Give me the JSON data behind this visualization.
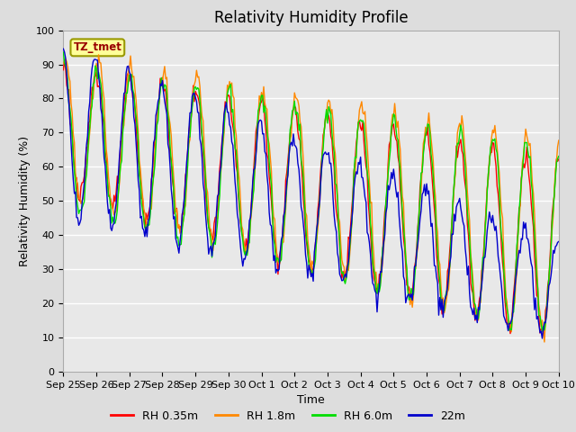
{
  "title": "Relativity Humidity Profile",
  "xlabel": "Time",
  "ylabel": "Relativity Humidity (%)",
  "ylim": [
    0,
    100
  ],
  "yticks": [
    0,
    10,
    20,
    30,
    40,
    50,
    60,
    70,
    80,
    90,
    100
  ],
  "xtick_labels": [
    "Sep 25",
    "Sep 26",
    "Sep 27",
    "Sep 28",
    "Sep 29",
    "Sep 30",
    "Oct 1",
    "Oct 2",
    "Oct 3",
    "Oct 4",
    "Oct 5",
    "Oct 6",
    "Oct 7",
    "Oct 8",
    "Oct 9",
    "Oct 10"
  ],
  "colors": {
    "RH 0.35m": "#ff0000",
    "RH 1.8m": "#ff8800",
    "RH 6.0m": "#00dd00",
    "22m": "#0000cc"
  },
  "legend_labels": [
    "RH 0.35m",
    "RH 1.8m",
    "RH 6.0m",
    "22m"
  ],
  "annotation_text": "TZ_tmet",
  "annotation_bg": "#ffff99",
  "annotation_border": "#999900",
  "fig_bg": "#dddddd",
  "plot_bg": "#e8e8e8",
  "title_fontsize": 12,
  "axis_fontsize": 9,
  "tick_fontsize": 8
}
